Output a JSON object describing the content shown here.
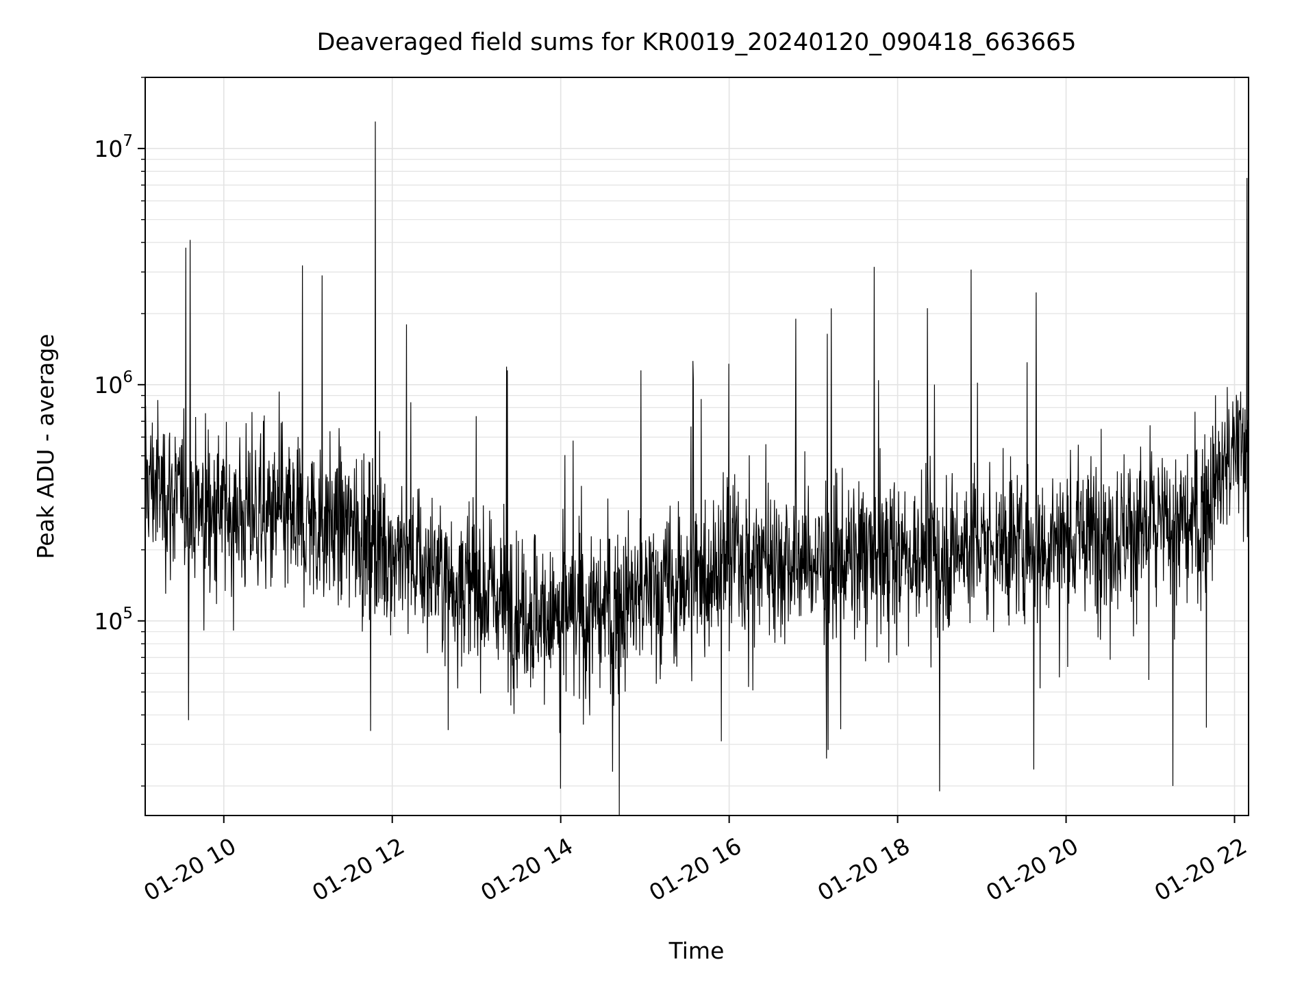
{
  "chart_data": {
    "type": "line",
    "title": "Deaveraged field sums for KR0019_20240120_090418_663665",
    "xlabel": "Time",
    "ylabel": "Peak ADU - average",
    "x_axis": {
      "type": "time",
      "range": [
        "2024-01-20T09:04",
        "2024-01-20T22:10"
      ],
      "ticks": [
        "01-20 10",
        "01-20 12",
        "01-20 14",
        "01-20 16",
        "01-20 18",
        "01-20 20",
        "01-20 22"
      ]
    },
    "y_axis": {
      "scale": "log",
      "range": [
        15000,
        20000000
      ],
      "ticks": [
        {
          "value": 100000,
          "base": "10",
          "exp": "5"
        },
        {
          "value": 1000000,
          "base": "10",
          "exp": "6"
        },
        {
          "value": 10000000,
          "base": "10",
          "exp": "7"
        }
      ]
    },
    "grid": true,
    "series": [
      {
        "color": "#000000",
        "x": [
          "2024-01-20T09:04",
          "2024-01-20T09:30",
          "2024-01-20T10:00",
          "2024-01-20T10:30",
          "2024-01-20T11:00",
          "2024-01-20T11:30",
          "2024-01-20T12:00",
          "2024-01-20T12:30",
          "2024-01-20T13:00",
          "2024-01-20T13:30",
          "2024-01-20T14:00",
          "2024-01-20T14:30",
          "2024-01-20T15:00",
          "2024-01-20T15:30",
          "2024-01-20T16:00",
          "2024-01-20T16:30",
          "2024-01-20T17:00",
          "2024-01-20T17:30",
          "2024-01-20T18:00",
          "2024-01-20T18:30",
          "2024-01-20T19:00",
          "2024-01-20T19:30",
          "2024-01-20T20:00",
          "2024-01-20T20:30",
          "2024-01-20T21:00",
          "2024-01-20T21:30",
          "2024-01-20T22:00",
          "2024-01-20T22:10"
        ],
        "y": [
          400000,
          320000,
          290000,
          270000,
          270000,
          250000,
          200000,
          160000,
          140000,
          115000,
          100000,
          110000,
          130000,
          150000,
          190000,
          185000,
          180000,
          180000,
          190000,
          195000,
          210000,
          215000,
          220000,
          240000,
          250000,
          250000,
          520000,
          550000
        ],
        "spikes": [
          {
            "x": "2024-01-20T09:36",
            "y": 4100000
          },
          {
            "x": "2024-01-20T09:33",
            "y": 3800000
          },
          {
            "x": "2024-01-20T10:56",
            "y": 3200000
          },
          {
            "x": "2024-01-20T11:10",
            "y": 2900000
          },
          {
            "x": "2024-01-20T11:48",
            "y": 13000000
          },
          {
            "x": "2024-01-20T12:10",
            "y": 1800000
          },
          {
            "x": "2024-01-20T13:22",
            "y": 1150000
          },
          {
            "x": "2024-01-20T14:57",
            "y": 1150000
          },
          {
            "x": "2024-01-20T15:40",
            "y": 870000
          },
          {
            "x": "2024-01-20T20:25",
            "y": 650000
          },
          {
            "x": "2024-01-20T22:09",
            "y": 7500000
          },
          {
            "x": "2024-01-20T09:35",
            "y": 38000
          },
          {
            "x": "2024-01-20T14:00",
            "y": 19500
          },
          {
            "x": "2024-01-20T14:37",
            "y": 23000
          },
          {
            "x": "2024-01-20T18:30",
            "y": 19000
          },
          {
            "x": "2024-01-20T19:37",
            "y": 23500
          },
          {
            "x": "2024-01-20T21:16",
            "y": 20000
          }
        ]
      }
    ]
  }
}
